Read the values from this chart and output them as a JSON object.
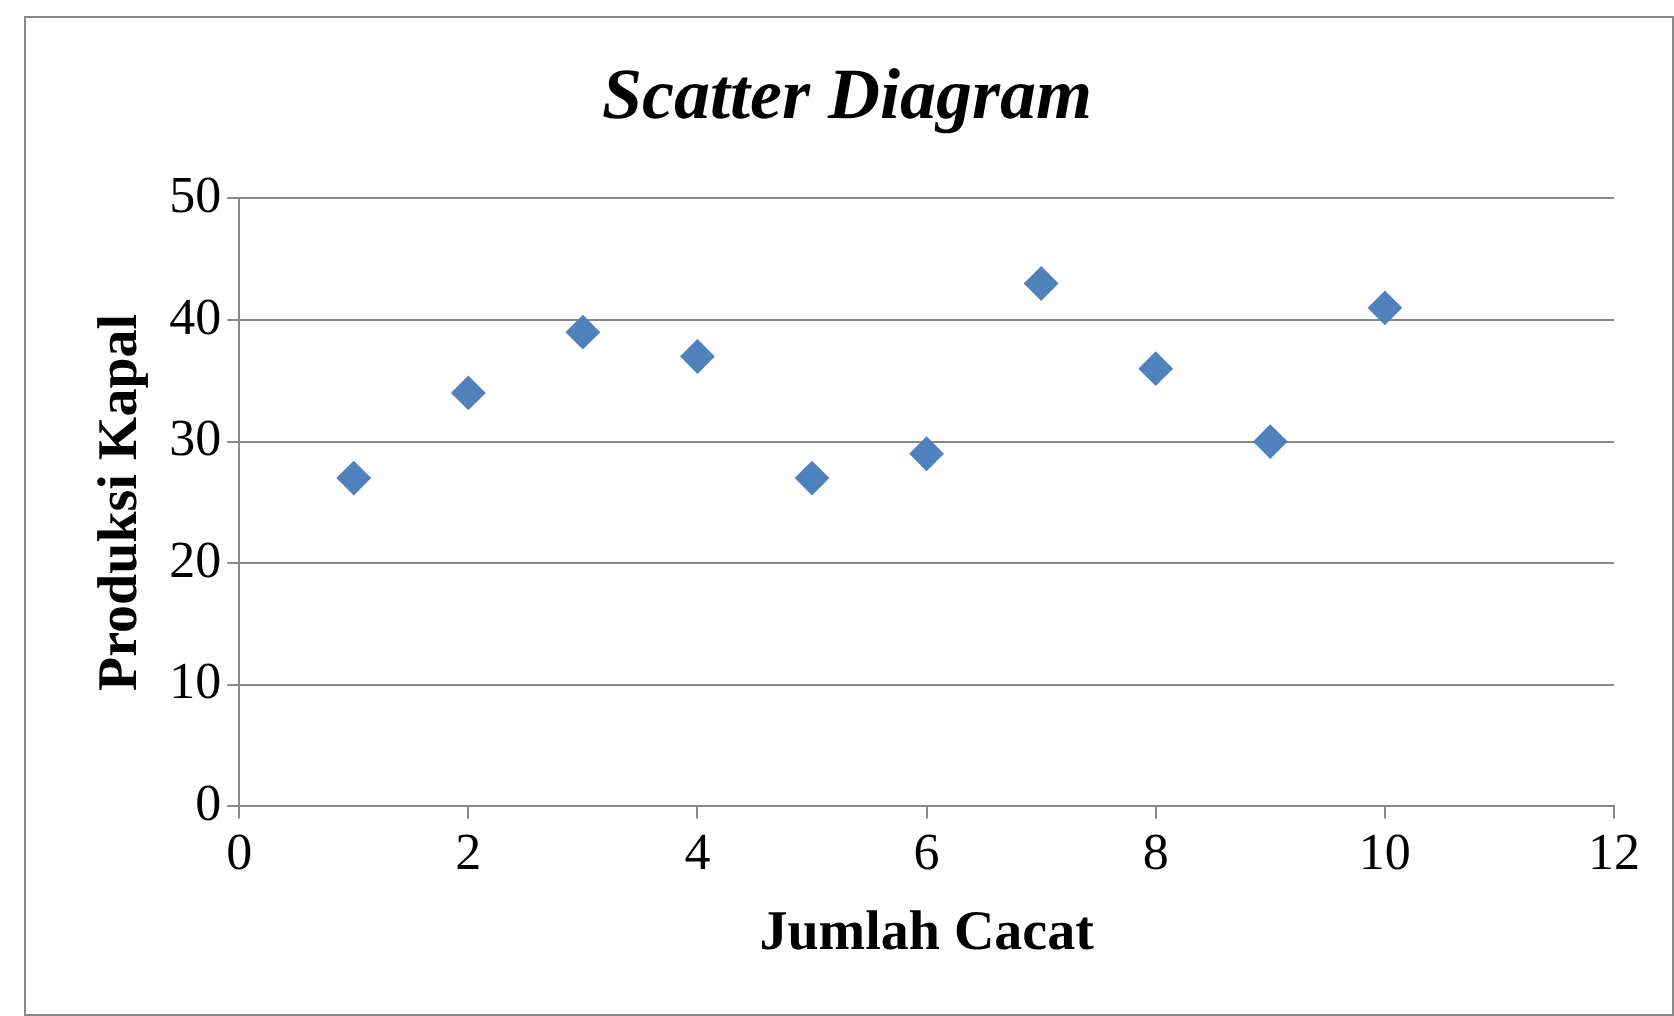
{
  "chart_data": {
    "type": "scatter",
    "title": "Scatter Diagram",
    "xlabel": "Jumlah Cacat",
    "ylabel": "Produksi Kapal",
    "x": [
      1,
      2,
      3,
      4,
      5,
      6,
      7,
      8,
      9,
      10
    ],
    "series": [
      {
        "color": "#4f81bd",
        "values": [
          27,
          34,
          39,
          37,
          27,
          29,
          43,
          36,
          30,
          41
        ]
      }
    ],
    "xlim": [
      0,
      12
    ],
    "xticks": [
      0,
      2,
      4,
      6,
      8,
      10,
      12
    ],
    "ylim": [
      0,
      50
    ],
    "yticks": [
      0,
      10,
      20,
      30,
      40,
      50
    ],
    "grid": "y",
    "legend": false,
    "marker": "diamond"
  }
}
